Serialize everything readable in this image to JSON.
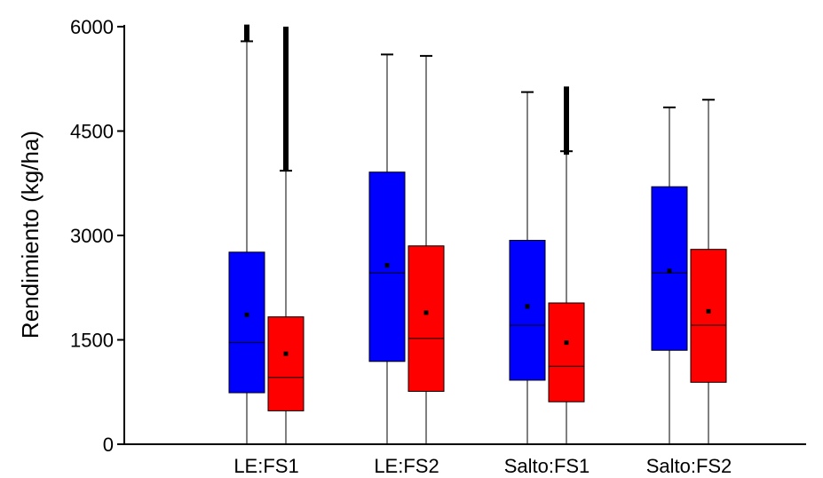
{
  "chart_data": {
    "type": "box",
    "xlabel": "",
    "ylabel": "Rendimiento (kg/ha)",
    "ylim": [
      0,
      6000
    ],
    "yticks": [
      "0",
      "1500",
      "3000",
      "4500",
      "6000"
    ],
    "grid": false,
    "legend": "none",
    "categories": [
      "LE:FS1",
      "LE:FS2",
      "Salto:FS1",
      "Salto:FS2"
    ],
    "colors": {
      "first": "#0000ff",
      "second": "#ff0000",
      "line": "#000000"
    },
    "series": [
      {
        "color": "#0000ff",
        "boxes": [
          {
            "min": 0,
            "q1": 740,
            "median": 1460,
            "q3": 2760,
            "max": 5790,
            "mean": 1860,
            "outliers_from": 5790,
            "outliers_to": 6030
          },
          {
            "min": 0,
            "q1": 1190,
            "median": 2460,
            "q3": 3910,
            "max": 5600,
            "mean": 2570
          },
          {
            "min": 0,
            "q1": 920,
            "median": 1710,
            "q3": 2930,
            "max": 5060,
            "mean": 1980
          },
          {
            "min": 0,
            "q1": 1350,
            "median": 2460,
            "q3": 3700,
            "max": 4840,
            "mean": 2490
          }
        ]
      },
      {
        "color": "#ff0000",
        "boxes": [
          {
            "min": 0,
            "q1": 480,
            "median": 960,
            "q3": 1830,
            "max": 3930,
            "mean": 1300,
            "outliers_from": 3930,
            "outliers_to": 6000
          },
          {
            "min": 0,
            "q1": 760,
            "median": 1520,
            "q3": 2850,
            "max": 5580,
            "mean": 1890
          },
          {
            "min": 0,
            "q1": 610,
            "median": 1120,
            "q3": 2030,
            "max": 4210,
            "mean": 1460,
            "outliers_from": 4160,
            "outliers_to": 5140
          },
          {
            "min": 0,
            "q1": 890,
            "median": 1710,
            "q3": 2800,
            "max": 4950,
            "mean": 1910
          }
        ]
      }
    ]
  }
}
